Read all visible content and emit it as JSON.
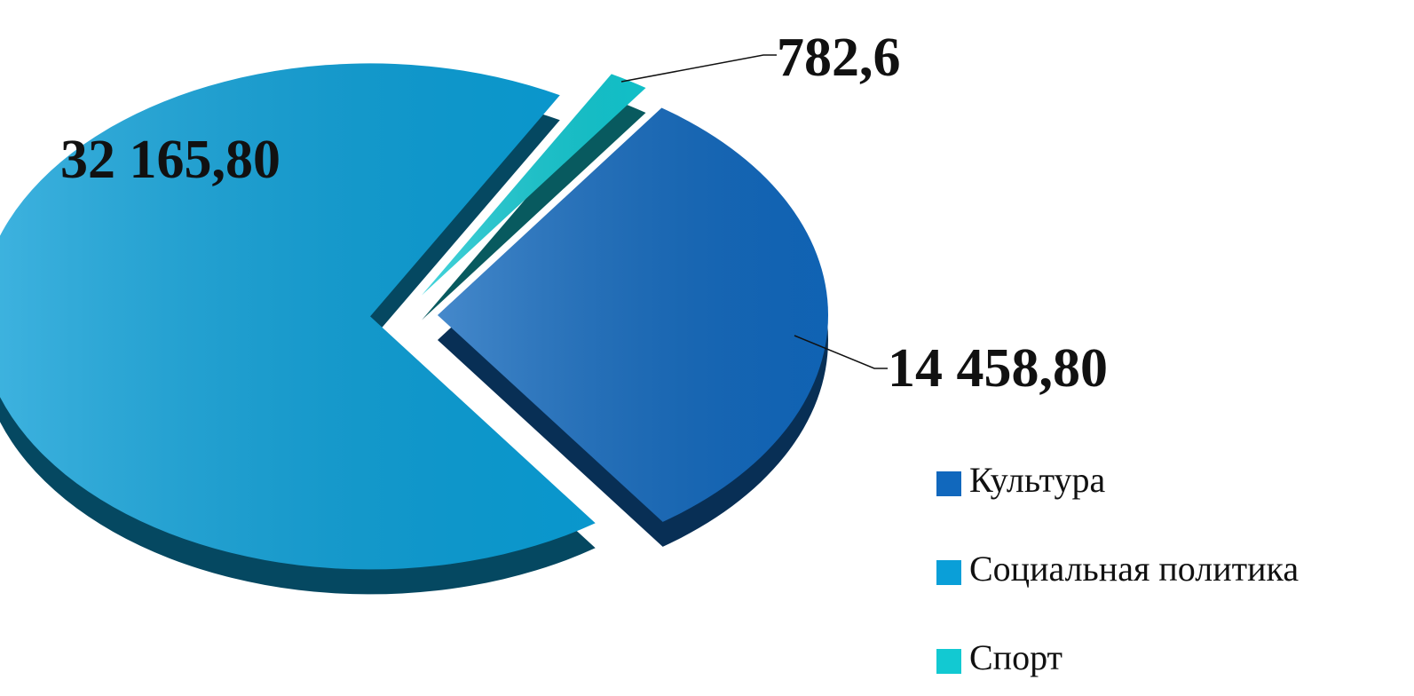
{
  "chart_data": {
    "type": "pie",
    "categories": [
      "Культура",
      "Социальная политика",
      "Спорт"
    ],
    "values": [
      14458.8,
      32165.8,
      782.6
    ],
    "value_labels": [
      "14 458,80",
      "32 165,80",
      "782,6"
    ],
    "colors": [
      "#1168bd",
      "#0a9fd8",
      "#12c9d2"
    ],
    "legend": "right"
  }
}
